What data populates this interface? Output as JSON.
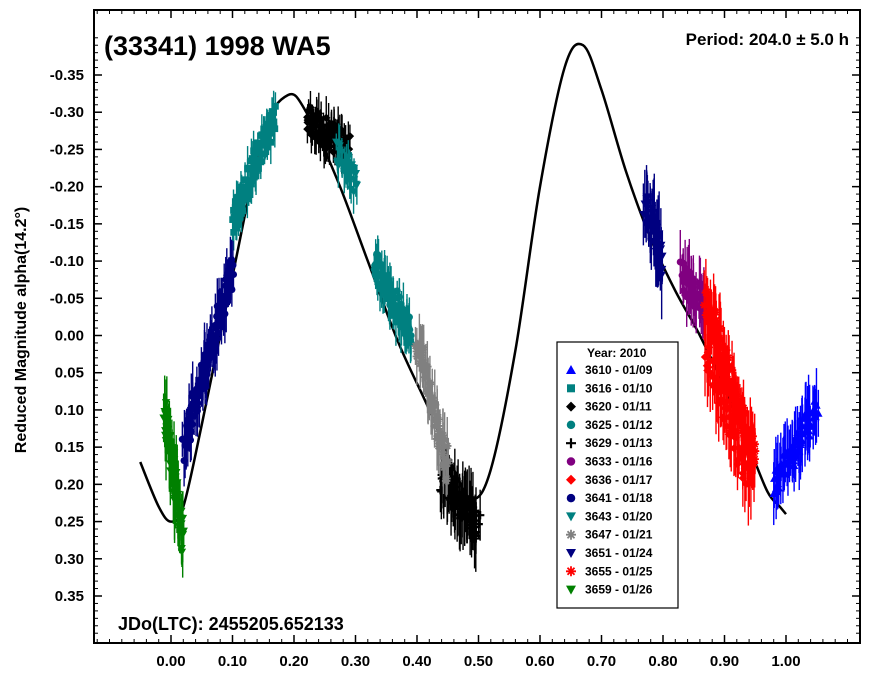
{
  "chart_data": {
    "type": "scatter",
    "title": "(33341) 1998 WA5",
    "annotation_period": "Period: 204.0 ± 5.0 h",
    "annotation_jd": "JDo(LTC): 2455205.652133",
    "ylabel": "Reduced Magnitude alpha(14.2°)",
    "xlabel": "",
    "xlim": [
      -0.1,
      1.1
    ],
    "ylim": [
      0.4,
      -0.41
    ],
    "y_inverted": true,
    "xticks": [
      0.0,
      0.1,
      0.2,
      0.3,
      0.4,
      0.5,
      0.6,
      0.7,
      0.8,
      0.9,
      1.0
    ],
    "xtick_labels": [
      "0.00",
      "0.10",
      "0.20",
      "0.30",
      "0.40",
      "0.50",
      "0.60",
      "0.70",
      "0.80",
      "0.90",
      "1.00"
    ],
    "yticks": [
      -0.35,
      -0.3,
      -0.25,
      -0.2,
      -0.15,
      -0.1,
      -0.05,
      0.0,
      0.05,
      0.1,
      0.15,
      0.2,
      0.25,
      0.3,
      0.35
    ],
    "ytick_labels": [
      "-0.35",
      "-0.30",
      "-0.25",
      "-0.20",
      "-0.15",
      "-0.10",
      "-0.05",
      "0.00",
      "0.05",
      "0.10",
      "0.15",
      "0.20",
      "0.25",
      "0.30",
      "0.35"
    ],
    "grid": false,
    "legend_placement": "lower-right",
    "legend_title": "Year: 2010",
    "fit_curve": {
      "color": "#000000",
      "x": [
        -0.05,
        -0.02,
        0.0,
        0.02,
        0.05,
        0.1,
        0.15,
        0.19,
        0.22,
        0.27,
        0.32,
        0.37,
        0.42,
        0.46,
        0.49,
        0.52,
        0.56,
        0.6,
        0.64,
        0.67,
        0.7,
        0.74,
        0.78,
        0.82,
        0.86,
        0.9,
        0.94,
        0.97,
        0.99,
        1.0
      ],
      "y": [
        0.17,
        0.23,
        0.25,
        0.23,
        0.12,
        -0.08,
        -0.27,
        -0.323,
        -0.3,
        -0.21,
        -0.1,
        0.01,
        0.1,
        0.18,
        0.22,
        0.18,
        0.02,
        -0.2,
        -0.36,
        -0.39,
        -0.33,
        -0.22,
        -0.13,
        -0.06,
        0.0,
        0.07,
        0.15,
        0.21,
        0.23,
        0.24
      ]
    },
    "series": [
      {
        "name": "3610 - 01/09",
        "color": "#0000ff",
        "marker": "triangle-up",
        "x_range": [
          0.98,
          1.05
        ],
        "y_range": [
          0.2,
          0.1
        ],
        "n": 70,
        "err": 0.035
      },
      {
        "name": "3616 - 01/10",
        "color": "#008080",
        "marker": "square",
        "x_range": [
          0.1,
          0.17
        ],
        "y_range": [
          -0.15,
          -0.3
        ],
        "n": 90,
        "err": 0.02
      },
      {
        "name": "3620 - 01/11",
        "color": "#000000",
        "marker": "diamond",
        "x_range": [
          0.22,
          0.29
        ],
        "y_range": [
          -0.29,
          -0.25
        ],
        "n": 90,
        "err": 0.02
      },
      {
        "name": "3625 - 01/12",
        "color": "#008080",
        "marker": "circle",
        "x_range": [
          0.33,
          0.39
        ],
        "y_range": [
          -0.1,
          0.0
        ],
        "n": 80,
        "err": 0.025
      },
      {
        "name": "3629 - 01/13",
        "color": "#000000",
        "marker": "plus",
        "x_range": [
          0.44,
          0.5
        ],
        "y_range": [
          0.19,
          0.26
        ],
        "n": 90,
        "err": 0.035
      },
      {
        "name": "3633 - 01/16",
        "color": "#800080",
        "marker": "circle",
        "x_range": [
          0.83,
          0.87
        ],
        "y_range": [
          -0.08,
          -0.04
        ],
        "n": 50,
        "err": 0.03
      },
      {
        "name": "3636 - 01/17",
        "color": "#ff0000",
        "marker": "diamond",
        "x_range": [
          0.87,
          0.94
        ],
        "y_range": [
          0.02,
          0.2
        ],
        "n": 60,
        "err": 0.04
      },
      {
        "name": "3641 - 01/18",
        "color": "#000080",
        "marker": "circle",
        "x_range": [
          0.02,
          0.1
        ],
        "y_range": [
          0.15,
          -0.09
        ],
        "n": 110,
        "err": 0.03
      },
      {
        "name": "3643 - 01/20",
        "color": "#008080",
        "marker": "triangle-down",
        "x_range": [
          0.27,
          0.3
        ],
        "y_range": [
          -0.25,
          -0.2
        ],
        "n": 40,
        "err": 0.02
      },
      {
        "name": "3647 - 01/21",
        "color": "#808080",
        "marker": "asterisk",
        "x_range": [
          0.4,
          0.45
        ],
        "y_range": [
          0.0,
          0.18
        ],
        "n": 60,
        "err": 0.03
      },
      {
        "name": "3651 - 01/24",
        "color": "#000080",
        "marker": "triangle-down",
        "x_range": [
          0.77,
          0.8
        ],
        "y_range": [
          -0.18,
          -0.1
        ],
        "n": 40,
        "err": 0.04
      },
      {
        "name": "3655 - 01/25",
        "color": "#ff0000",
        "marker": "asterisk",
        "x_range": [
          0.87,
          0.95
        ],
        "y_range": [
          -0.05,
          0.17
        ],
        "n": 110,
        "err": 0.035
      },
      {
        "name": "3659 - 01/26",
        "color": "#008000",
        "marker": "triangle-down",
        "x_range": [
          -0.01,
          0.02
        ],
        "y_range": [
          0.1,
          0.28
        ],
        "n": 60,
        "err": 0.04
      }
    ]
  }
}
